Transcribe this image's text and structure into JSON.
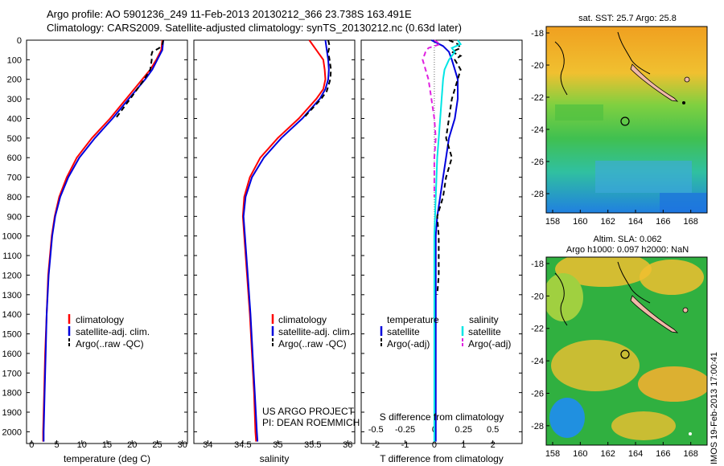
{
  "header": {
    "line1": "Argo profile: AO 5901236_249 11-Feb-2013 20130212_366 23.738S 163.491E",
    "line2": "Climatology: CARS2009. Satellite-adjusted climatology: synTS_20130212.nc (0.63d later)"
  },
  "colors": {
    "climatology": "#ff0000",
    "satellite": "#0000dd",
    "argo": "#000000",
    "satellite_salinity": "#00e5e5",
    "argo_salinity": "#e020e0"
  },
  "depth_ticks": [
    "0",
    "100",
    "200",
    "300",
    "400",
    "500",
    "600",
    "700",
    "800",
    "900",
    "1000",
    "1100",
    "1200",
    "1300",
    "1400",
    "1500",
    "1600",
    "1700",
    "1800",
    "1900",
    "2000"
  ],
  "chart_data": [
    {
      "type": "line",
      "id": "temperature",
      "xlabel": "temperature (deg C)",
      "ylabel": "",
      "xlim": [
        -1,
        31
      ],
      "ylim": [
        2060,
        0
      ],
      "xticks": [
        "0",
        "5",
        "10",
        "15",
        "20",
        "25",
        "30"
      ],
      "legend": [
        "climatology",
        "satellite-adj. clim.",
        "Argo(..raw -QC)"
      ],
      "series": [
        {
          "name": "climatology",
          "color": "#ff0000",
          "depth": [
            0,
            50,
            100,
            150,
            200,
            300,
            400,
            500,
            600,
            700,
            800,
            900,
            1000,
            1200,
            1400,
            1600,
            1800,
            2000,
            2050
          ],
          "values": [
            26.0,
            25.8,
            24.8,
            23.6,
            22.0,
            18.8,
            15.6,
            12.0,
            9.0,
            7.0,
            5.5,
            4.6,
            4.0,
            3.3,
            3.0,
            2.7,
            2.5,
            2.3,
            2.3
          ]
        },
        {
          "name": "satellite-adj. clim.",
          "color": "#0000dd",
          "depth": [
            0,
            50,
            100,
            150,
            200,
            300,
            400,
            500,
            600,
            700,
            800,
            900,
            1000,
            1200,
            1400,
            1600,
            1800,
            2000,
            2050
          ],
          "values": [
            26.2,
            26.0,
            25.0,
            24.0,
            22.6,
            19.3,
            16.1,
            12.6,
            9.5,
            7.3,
            5.7,
            4.7,
            4.1,
            3.4,
            3.0,
            2.8,
            2.6,
            2.4,
            2.4
          ]
        },
        {
          "name": "Argo(..raw -QC)",
          "color": "#000000",
          "dash": "6,4",
          "depth": [
            0,
            20,
            40,
            60,
            80,
            100,
            150,
            200,
            300,
            400
          ],
          "values": [
            26.2,
            26.0,
            25.4,
            24.0,
            23.8,
            23.9,
            23.6,
            22.4,
            19.6,
            16.7
          ]
        }
      ]
    },
    {
      "type": "line",
      "id": "salinity",
      "xlabel": "salinity",
      "ylabel": "",
      "xlim": [
        33.8,
        36.1
      ],
      "ylim": [
        2060,
        0
      ],
      "xticks": [
        "34",
        "34.5",
        "35",
        "35.5",
        "36"
      ],
      "legend": [
        "climatology",
        "satellite-adj. clim.",
        "Argo(..raw -QC)"
      ],
      "series": [
        {
          "name": "climatology",
          "color": "#ff0000",
          "depth": [
            0,
            50,
            100,
            150,
            200,
            250,
            300,
            400,
            500,
            600,
            700,
            800,
            900,
            1000,
            1200,
            1400,
            1600,
            1800,
            2000,
            2050
          ],
          "values": [
            35.45,
            35.55,
            35.65,
            35.67,
            35.68,
            35.65,
            35.55,
            35.3,
            35.0,
            34.75,
            34.6,
            34.52,
            34.5,
            34.52,
            34.56,
            34.6,
            34.63,
            34.66,
            34.68,
            34.69
          ]
        },
        {
          "name": "satellite-adj. clim.",
          "color": "#0000dd",
          "depth": [
            0,
            50,
            100,
            150,
            200,
            250,
            300,
            400,
            500,
            600,
            700,
            800,
            900,
            1000,
            1200,
            1400,
            1600,
            1800,
            2000,
            2050
          ],
          "values": [
            35.68,
            35.7,
            35.72,
            35.73,
            35.72,
            35.68,
            35.6,
            35.35,
            35.05,
            34.8,
            34.63,
            34.54,
            34.51,
            34.53,
            34.57,
            34.61,
            34.64,
            34.67,
            34.7,
            34.71
          ]
        },
        {
          "name": "Argo(..raw -QC)",
          "color": "#000000",
          "dash": "6,4",
          "depth": [
            0,
            30,
            60,
            100,
            150,
            200,
            260,
            300,
            400
          ],
          "values": [
            35.72,
            35.74,
            35.72,
            35.74,
            35.76,
            35.75,
            35.7,
            35.62,
            35.36
          ]
        }
      ]
    },
    {
      "type": "line",
      "id": "difference",
      "xlabel": "T difference from climatology",
      "xlabel_top": "S difference from climatology",
      "xlim": [
        -2.5,
        3.0
      ],
      "ylim": [
        2060,
        0
      ],
      "xticks": [
        "-2",
        "-1",
        "0",
        "1",
        "2"
      ],
      "xticks_s": [
        "-0.5",
        "-0.25",
        "0",
        "0.25",
        "0.5"
      ],
      "legend_titles": [
        "temperature",
        "salinity"
      ],
      "legend": [
        "satellite",
        "Argo(-adj)",
        "satellite",
        "Argo(-adj)"
      ],
      "series": [
        {
          "name": "satellite",
          "color": "#0000dd",
          "depth": [
            0,
            30,
            60,
            100,
            150,
            200,
            300,
            400,
            500,
            600,
            700,
            800,
            900,
            1000,
            1400,
            1800,
            2050
          ],
          "values": [
            -0.1,
            0.3,
            0.5,
            0.6,
            0.7,
            0.8,
            0.8,
            0.7,
            0.5,
            0.4,
            0.3,
            0.2,
            0.1,
            0.05,
            0.05,
            0.05,
            0.05
          ]
        },
        {
          "name": "Argo(-adj)",
          "color": "#000000",
          "dash": "6,4",
          "depth": [
            0,
            20,
            40,
            60,
            80,
            100,
            150,
            200,
            300,
            400,
            500,
            600,
            700,
            800,
            900,
            1000,
            1200,
            1300
          ],
          "values": [
            0.5,
            0.8,
            0.9,
            0.6,
            0.9,
            0.7,
            0.9,
            0.8,
            0.6,
            0.5,
            0.4,
            0.6,
            0.4,
            0.3,
            0.1,
            0.15,
            0.15,
            0.1
          ]
        },
        {
          "name": "satellite",
          "color": "#00e5e5",
          "depth": [
            0,
            20,
            40,
            60,
            100,
            150,
            200,
            300,
            400,
            500,
            600,
            800,
            1000,
            1400,
            1800,
            2050
          ],
          "values": [
            0.8,
            0.9,
            0.6,
            0.7,
            0.5,
            0.35,
            0.3,
            0.25,
            0.2,
            0.15,
            0.1,
            0.05,
            0.0,
            0.0,
            0.0,
            0.0
          ]
        },
        {
          "name": "Argo(-adj)",
          "color": "#e020e0",
          "dash": "6,4",
          "depth": [
            0,
            20,
            40,
            60,
            100,
            150,
            200,
            300,
            400,
            500,
            600,
            700,
            800
          ],
          "values": [
            0.0,
            0.2,
            -0.2,
            -0.3,
            -0.4,
            -0.3,
            -0.2,
            -0.1,
            0.0,
            0.05,
            0.0,
            0.0,
            0.0
          ]
        }
      ]
    }
  ],
  "credits": {
    "line1": "US ARGO PROJECT",
    "line2": "PI: DEAN ROEMMICH"
  },
  "map_top": {
    "title": "sat. SST: 25.7 Argo: 25.8",
    "yticks": [
      "-18",
      "-20",
      "-22",
      "-24",
      "-26",
      "-28"
    ],
    "xticks": [
      "158",
      "160",
      "162",
      "164",
      "166",
      "168"
    ]
  },
  "map_bottom": {
    "title1": "Altim. SLA: 0.062",
    "title2": "Argo h1000: 0.097 h2000: NaN",
    "yticks": [
      "-18",
      "-20",
      "-22",
      "-24",
      "-26",
      "-28"
    ],
    "xticks": [
      "158",
      "160",
      "162",
      "164",
      "166",
      "168"
    ]
  },
  "side_label": "IMOS 19-Feb-2013 17:00:41"
}
